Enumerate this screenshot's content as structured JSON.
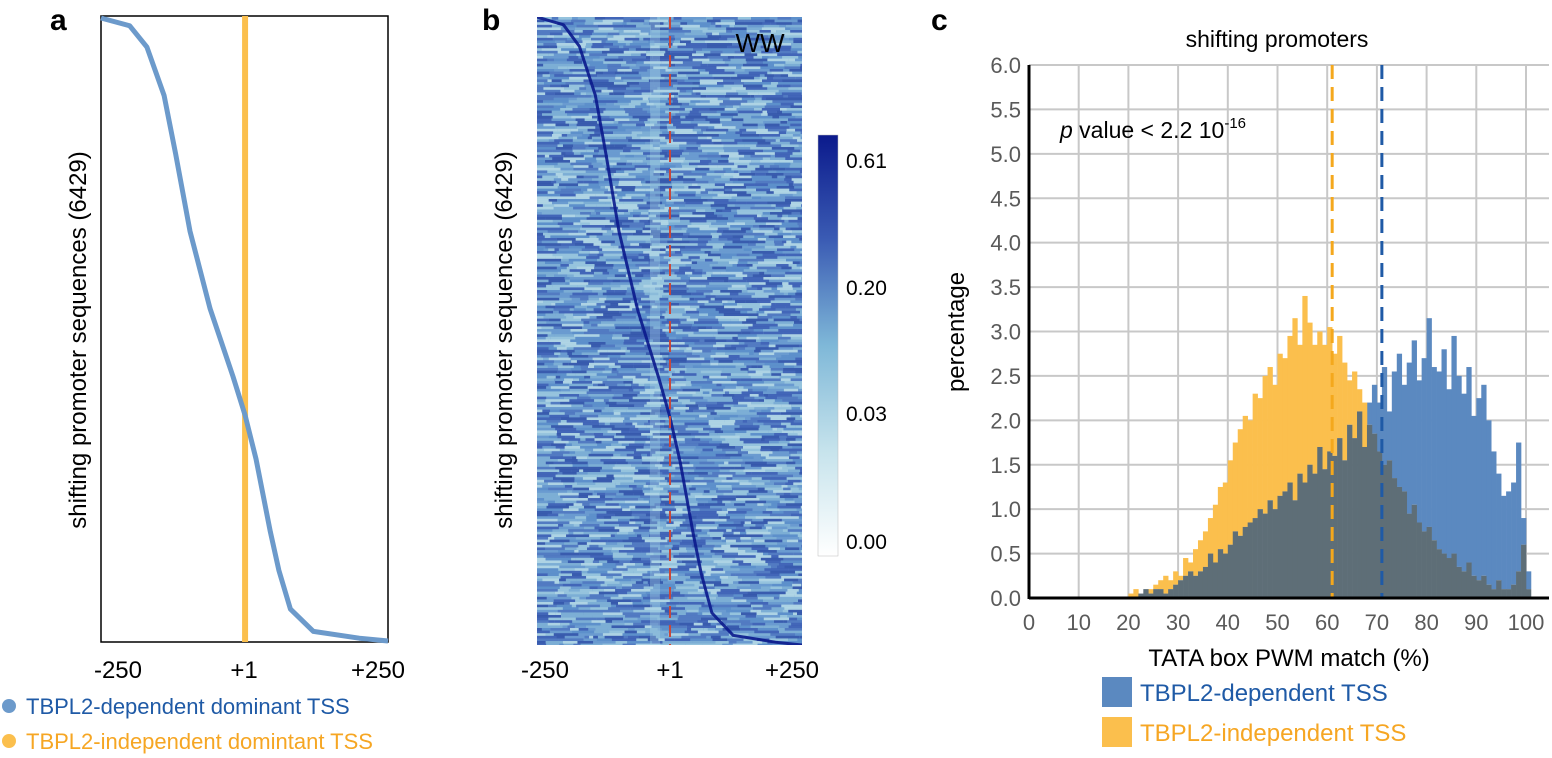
{
  "colors": {
    "dependent": "#6c9acb",
    "dependent_dark": "#1f5aa6",
    "independent": "#fbbf4d",
    "independent_text": "#f6a623",
    "overlap": "#5e6e77",
    "hist_dependent": "#5b89c0",
    "hist_independent": "#fbbf4d",
    "heat_high": "#0b1a8c",
    "heat_low": "#ffffff",
    "red_dash": "#c8483b"
  },
  "panel_a": {
    "letter": "a",
    "ylabel": "shifting promoter sequences (6429)",
    "x_ticks": [
      "-250",
      "+1",
      "+250"
    ],
    "legend": [
      {
        "label": "TBPL2-dependent dominant TSS",
        "color_key": "dependent_dark"
      },
      {
        "label": "TBPL2-independent domintant TSS",
        "color_key": "independent_text"
      }
    ]
  },
  "panel_b": {
    "letter": "b",
    "ylabel": "shifting promoter sequences (6429)",
    "x_ticks": [
      "-250",
      "+1",
      "+250"
    ],
    "corner_label": "WW",
    "colorbar_ticks": [
      "0.61",
      "0.20",
      "0.03",
      "0.00"
    ]
  },
  "chart_data": [
    {
      "type": "line",
      "panel": "a",
      "description_free": true,
      "x_ticks": [
        "-250",
        "+1",
        "+250"
      ],
      "xlim": [
        -250,
        250
      ],
      "ylim": [
        0,
        6429
      ],
      "series": [
        {
          "name": "TBPL2-dependent dominant TSS",
          "points": [
            [
              -250,
              0
            ],
            [
              -200,
              80
            ],
            [
              -170,
              300
            ],
            [
              -140,
              800
            ],
            [
              -120,
              1400
            ],
            [
              -95,
              2200
            ],
            [
              -60,
              3000
            ],
            [
              -20,
              3700
            ],
            [
              1,
              4100
            ],
            [
              20,
              4550
            ],
            [
              45,
              5300
            ],
            [
              60,
              5700
            ],
            [
              80,
              6100
            ],
            [
              120,
              6330
            ],
            [
              200,
              6400
            ],
            [
              250,
              6429
            ]
          ]
        },
        {
          "name": "TBPL2-independent domintant TSS",
          "vertical_at_x": 1
        }
      ]
    },
    {
      "type": "heatmap",
      "panel": "b",
      "x_ticks": [
        "-250",
        "+1",
        "+250"
      ],
      "xlim": [
        -250,
        250
      ],
      "rows": 6429,
      "label": "WW",
      "colorbar": {
        "ticks": [
          0.61,
          0.2,
          0.03,
          0.0
        ]
      }
    },
    {
      "type": "bar",
      "panel": "c",
      "title": "shifting promoters",
      "xlabel": "TATA box PWM match (%)",
      "ylabel": "percentage",
      "xlim": [
        0,
        100
      ],
      "ylim": [
        0,
        6.0
      ],
      "x_ticks": [
        0,
        10,
        20,
        30,
        40,
        50,
        60,
        70,
        80,
        90,
        100
      ],
      "y_ticks": [
        "0.0",
        "0.5",
        "1.0",
        "1.5",
        "2.0",
        "2.5",
        "3.0",
        "3.5",
        "4.0",
        "4.5",
        "5.0",
        "5.5",
        "6.0"
      ],
      "grid": true,
      "annotation": {
        "italic": "p",
        "text": " value < 2.2 10",
        "superscript": "-16"
      },
      "medians": [
        {
          "series": "TBPL2-independent TSS",
          "x": 61
        },
        {
          "series": "TBPL2-dependent TSS",
          "x": 71
        }
      ],
      "legend": [
        "TBPL2-dependent TSS",
        "TBPL2-independent TSS"
      ],
      "bin_width": 1,
      "bin_start": 20,
      "series": [
        {
          "name": "TBPL2-dependent TSS",
          "values": [
            0.0,
            0.0,
            0.05,
            0.1,
            0.05,
            0.1,
            0.1,
            0.05,
            0.1,
            0.15,
            0.2,
            0.25,
            0.3,
            0.25,
            0.3,
            0.35,
            0.5,
            0.4,
            0.55,
            0.5,
            0.6,
            0.75,
            0.7,
            0.8,
            0.85,
            0.9,
            1.0,
            0.95,
            1.1,
            1.0,
            1.15,
            1.2,
            1.3,
            1.1,
            1.4,
            1.3,
            1.5,
            1.4,
            1.7,
            1.45,
            1.65,
            1.6,
            1.8,
            1.55,
            1.95,
            1.8,
            2.1,
            1.7,
            2.2,
            2.4,
            2.2,
            2.6,
            2.1,
            2.55,
            2.75,
            2.4,
            2.65,
            2.9,
            2.45,
            2.7,
            3.15,
            2.6,
            2.55,
            2.8,
            2.35,
            2.95,
            2.5,
            2.3,
            2.6,
            2.05,
            2.25,
            2.4,
            2.0,
            1.65,
            1.4,
            1.15,
            1.2,
            1.3,
            1.75,
            0.9,
            0.3
          ]
        },
        {
          "name": "TBPL2-independent TSS",
          "values": [
            0.05,
            0.1,
            0.05,
            0.1,
            0.1,
            0.15,
            0.2,
            0.25,
            0.2,
            0.3,
            0.25,
            0.45,
            0.4,
            0.55,
            0.65,
            0.75,
            0.9,
            1.05,
            1.25,
            1.3,
            1.55,
            1.75,
            1.9,
            2.05,
            2.0,
            2.3,
            2.25,
            2.5,
            2.6,
            2.4,
            2.75,
            2.7,
            2.95,
            3.15,
            2.85,
            3.4,
            3.1,
            2.85,
            3.0,
            2.85,
            3.05,
            2.75,
            2.95,
            2.65,
            2.45,
            2.55,
            2.35,
            2.2,
            1.95,
            1.85,
            1.65,
            1.5,
            1.55,
            1.35,
            1.25,
            1.2,
            0.95,
            1.05,
            0.85,
            0.75,
            0.8,
            0.65,
            0.55,
            0.5,
            0.45,
            0.5,
            0.35,
            0.3,
            0.4,
            0.25,
            0.2,
            0.25,
            0.15,
            0.1,
            0.2,
            0.1,
            0.1,
            0.15,
            0.3,
            0.6,
            0.1
          ]
        }
      ]
    }
  ]
}
